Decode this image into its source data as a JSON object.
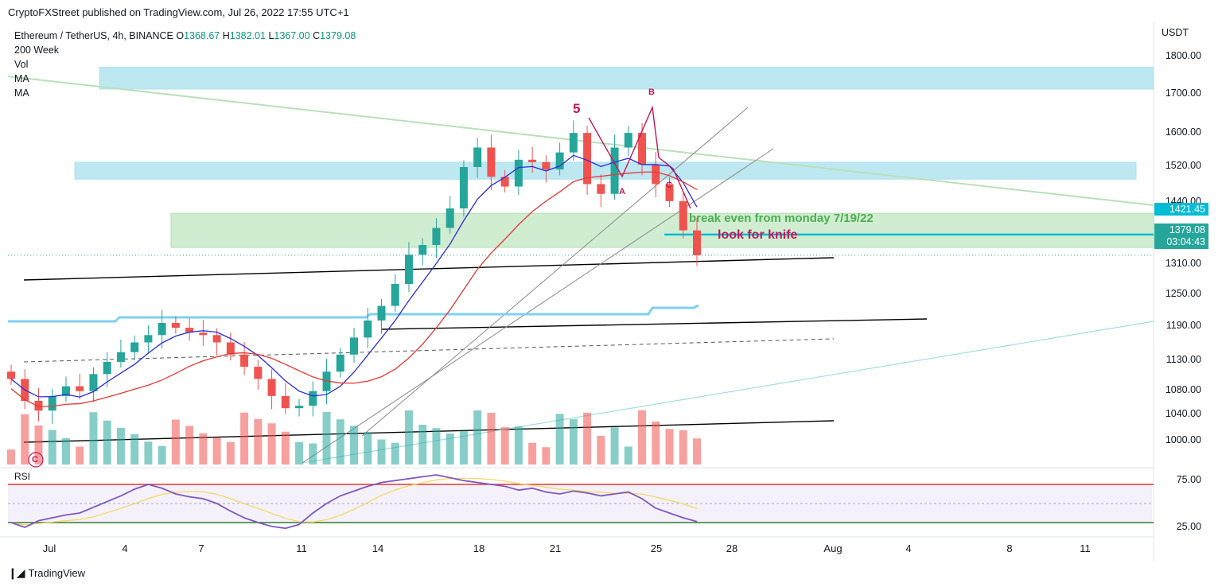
{
  "header": {
    "publisher": "CryptoFXStreet published on TradingView.com, Jul 26, 2022 17:55 UTC+1"
  },
  "legend": {
    "symbol": "Ethereum / TetherUS, 4h, BINANCE",
    "o_label": "O",
    "o_value": "1368.67",
    "h_label": "H",
    "h_value": "1382.01",
    "l_label": "L",
    "l_value": "1367.00",
    "c_label": "C",
    "c_value": "1379.08",
    "line2": "200 Week",
    "line3": "Vol",
    "line4": "MA",
    "line5": "MA"
  },
  "price_axis": {
    "currency": "USDT",
    "ticks": [
      "1800.00",
      "1700.00",
      "1600.00",
      "1520.00",
      "1440.00",
      "1310.00",
      "1250.00",
      "1190.00",
      "1130.00",
      "1080.00",
      "1040.00",
      "1000.00"
    ],
    "tag_level": "1421.45",
    "tag_price": "1379.08",
    "tag_countdown": "03:04:43"
  },
  "rsi_axis": {
    "title": "RSI",
    "ticks": [
      "75.00",
      "25.00"
    ]
  },
  "time_axis": {
    "ticks": [
      "Jul",
      "4",
      "7",
      "11",
      "14",
      "18",
      "21",
      "25",
      "28",
      "Aug",
      "4",
      "8",
      "11"
    ]
  },
  "annotations": {
    "wave_5": "5",
    "wave_a": "A",
    "wave_b": "B",
    "wave_c": "C",
    "wave_c_circled": "C",
    "break_even": "break even from monday 7/19/22",
    "knife": "look for knife"
  },
  "footer": {
    "brand": "TradingView"
  },
  "colors": {
    "up": "#26a69a",
    "down": "#ef5350",
    "zone_blue": "#b2e4ef",
    "zone_green": "#c8ebc9",
    "ma_blue": "#2b2bdc",
    "ma_red": "#e53935",
    "week200": "#7fd0f0",
    "level": "#00bcd4",
    "annotation_red": "#c2185b",
    "annotation_green": "#4caf50"
  },
  "chart_data": {
    "type": "candlestick",
    "title": "Ethereum / TetherUS, 4h, BINANCE",
    "ylabel": "USDT",
    "ylim": [
      960,
      1830
    ],
    "x_ticks": [
      "Jul",
      "4",
      "7",
      "11",
      "14",
      "18",
      "21",
      "25",
      "28",
      "Aug",
      "4",
      "8",
      "11"
    ],
    "last_close": 1379.08,
    "horizontal_level": 1421.45,
    "zones": [
      {
        "from": 1720,
        "to": 1765,
        "color": "blue"
      },
      {
        "from": 1535,
        "to": 1570,
        "color": "blue"
      },
      {
        "from": 1395,
        "to": 1465,
        "color": "green"
      }
    ],
    "close_path": [
      1125,
      1080,
      1060,
      1090,
      1110,
      1100,
      1135,
      1160,
      1180,
      1200,
      1215,
      1240,
      1230,
      1220,
      1215,
      1200,
      1175,
      1150,
      1125,
      1090,
      1065,
      1070,
      1100,
      1140,
      1175,
      1210,
      1245,
      1275,
      1320,
      1380,
      1400,
      1435,
      1475,
      1560,
      1600,
      1540,
      1520,
      1575,
      1570,
      1555,
      1590,
      1630,
      1525,
      1505,
      1600,
      1630,
      1565,
      1525,
      1490,
      1430,
      1379
    ],
    "volume_note": "volume histogram below price panel",
    "rsi": {
      "ylim": [
        15,
        90
      ],
      "overbought": 70,
      "oversold": 30,
      "values": [
        30,
        25,
        32,
        35,
        38,
        40,
        46,
        52,
        58,
        65,
        70,
        66,
        60,
        57,
        55,
        50,
        42,
        35,
        30,
        26,
        24,
        28,
        40,
        50,
        58,
        63,
        68,
        72,
        74,
        76,
        78,
        80,
        77,
        74,
        72,
        70,
        68,
        64,
        66,
        62,
        60,
        63,
        61,
        58,
        60,
        62,
        55,
        45,
        40,
        35,
        31
      ]
    }
  }
}
